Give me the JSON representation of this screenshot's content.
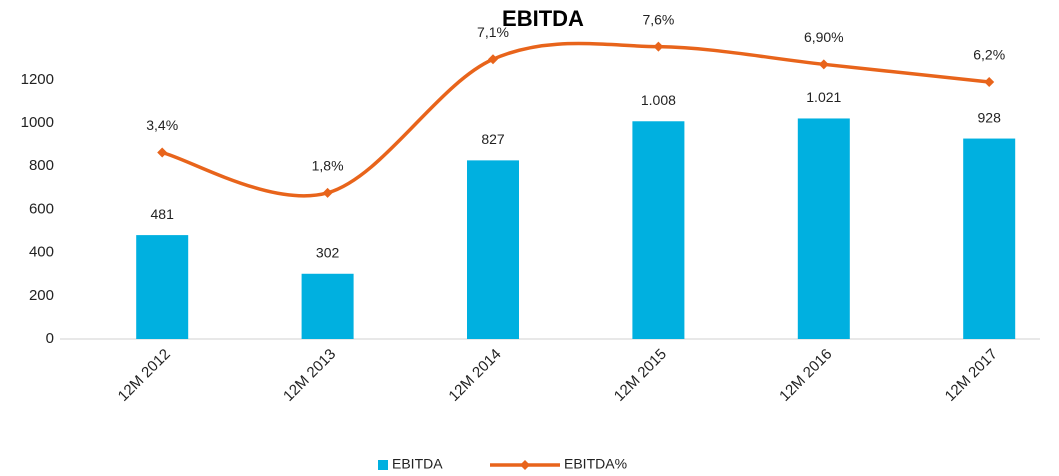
{
  "chart_data": {
    "type": "bar",
    "title": "EBITDA",
    "categories": [
      "12M 2012",
      "12M 2013",
      "12M 2014",
      "12M 2015",
      "12M 2016",
      "12M 2017"
    ],
    "series": [
      {
        "name": "EBITDA",
        "type": "bar",
        "color": "#00b0e0",
        "values": [
          481,
          302,
          827,
          1008,
          1021,
          928
        ],
        "value_labels": [
          "481",
          "302",
          "827",
          "1.008",
          "1.021",
          "928"
        ]
      },
      {
        "name": "EBITDA%",
        "type": "line",
        "axis": "y2",
        "color": "#e8641b",
        "smooth": true,
        "values": [
          3.4,
          1.8,
          7.1,
          7.6,
          6.9,
          6.2
        ],
        "value_labels": [
          "3,4%",
          "1,8%",
          "7,1%",
          "7,6%",
          "6,90%",
          "6,2%"
        ]
      }
    ],
    "ylim": [
      0,
      1400
    ],
    "yticks": [
      0,
      200,
      400,
      600,
      800,
      1000,
      1200
    ],
    "y2lim": [
      -4,
      8
    ],
    "grid": false,
    "legend": "bottom"
  }
}
